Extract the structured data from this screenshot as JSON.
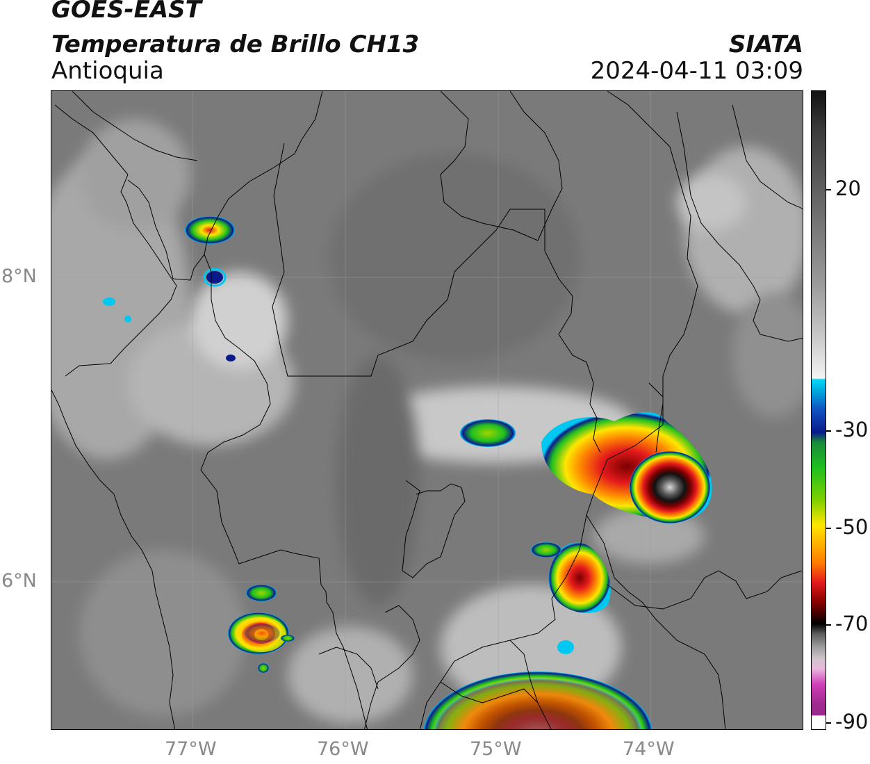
{
  "header": {
    "satellite": "GOES-EAST",
    "product": "Temperatura de Brillo CH13",
    "region": "Antioquia",
    "organization": "SIATA",
    "timestamp": "2024-04-11 03:09"
  },
  "axes": {
    "latitude_labels": [
      "8°N",
      "6°N"
    ],
    "longitude_labels": [
      "77°W",
      "76°W",
      "75°W",
      "74°W"
    ]
  },
  "colorbar": {
    "tick_labels": [
      "20",
      "-30",
      "-50",
      "-70",
      "-90"
    ],
    "range": [
      -90,
      30
    ],
    "colors": {
      "magenta": "#d03fb8",
      "pink_light": "#e8b8dc",
      "gray_light": "#cfcfcf",
      "black": "#000000",
      "dark_red": "#6b0000",
      "red": "#e41a1c",
      "orange": "#ff8c00",
      "yellow": "#ffe600",
      "green": "#1fbf1f",
      "dark_blue": "#0a1a8c",
      "cyan": "#00c8f0",
      "white": "#f4f4f4"
    }
  }
}
